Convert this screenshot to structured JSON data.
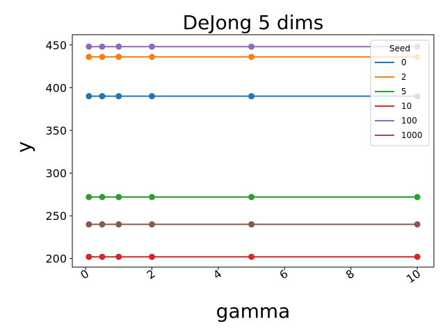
{
  "chart_data": {
    "type": "line",
    "title": "DeJong 5 dims",
    "xlabel": "gamma",
    "ylabel": "y",
    "x": [
      0.1,
      0.5,
      1,
      2,
      5,
      10
    ],
    "xlim": [
      -0.4,
      10.5
    ],
    "ylim": [
      190,
      462
    ],
    "xticks": [
      0,
      2,
      4,
      6,
      8,
      10
    ],
    "yticks": [
      200,
      250,
      300,
      350,
      400,
      450
    ],
    "grid": false,
    "legend": {
      "title": "Seed",
      "placement": "top-right"
    },
    "series": [
      {
        "name": "0",
        "color": "#1f77b4",
        "values": [
          390,
          390,
          390,
          390,
          390,
          390
        ]
      },
      {
        "name": "2",
        "color": "#ff7f0e",
        "values": [
          436,
          436,
          436,
          436,
          436,
          436
        ]
      },
      {
        "name": "5",
        "color": "#2ca02c",
        "values": [
          272,
          272,
          272,
          272,
          272,
          272
        ]
      },
      {
        "name": "10",
        "color": "#d62728",
        "values": [
          202,
          202,
          202,
          202,
          202,
          202
        ]
      },
      {
        "name": "100",
        "color": "#9467bd",
        "values": [
          448,
          448,
          448,
          448,
          448,
          448
        ]
      },
      {
        "name": "1000",
        "color": "#8c564b",
        "values": [
          240,
          240,
          240,
          240,
          240,
          240
        ]
      }
    ]
  }
}
